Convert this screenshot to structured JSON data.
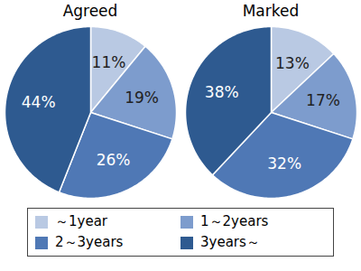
{
  "chart_data": [
    {
      "type": "pie",
      "title": "Agreed",
      "categories": [
        "～1year",
        "1～2years",
        "2～3years",
        "3years～"
      ],
      "values": [
        11,
        19,
        26,
        44
      ],
      "value_labels": [
        "11%",
        "19%",
        "26%",
        "44%"
      ],
      "colors": [
        "#b9c9e3",
        "#7d9ccd",
        "#4f78b5",
        "#2e5a90"
      ],
      "data_labels": true,
      "legend": "bottom"
    },
    {
      "type": "pie",
      "title": "Marked",
      "categories": [
        "～1year",
        "1～2years",
        "2～3years",
        "3years～"
      ],
      "values": [
        13,
        17,
        32,
        38
      ],
      "value_labels": [
        "13%",
        "17%",
        "32%",
        "38%"
      ],
      "colors": [
        "#b9c9e3",
        "#7d9ccd",
        "#4f78b5",
        "#2e5a90"
      ],
      "data_labels": true,
      "legend": "bottom"
    }
  ]
}
